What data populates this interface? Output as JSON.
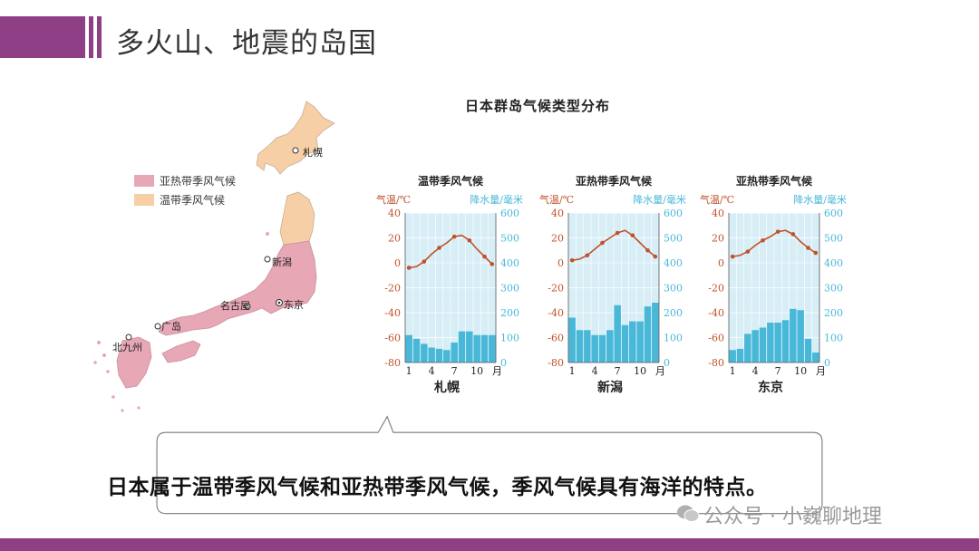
{
  "header": {
    "title": "多火山、地震的岛国"
  },
  "map": {
    "legend": [
      {
        "label": "亚热带季风气候",
        "color": "#e7a7b5"
      },
      {
        "label": "温带季风气候",
        "color": "#f6cfa6"
      }
    ],
    "cities": [
      "札幌",
      "新潟",
      "名古屋",
      "东京",
      "广岛",
      "北九州"
    ]
  },
  "distribution_title": "日本群岛气候类型分布",
  "colors": {
    "accent": "#8e3f86",
    "temp_line": "#c0512b",
    "precip_bar": "#49b8d8",
    "plot_bg": "#d8eef6"
  },
  "chart_data": [
    {
      "type": "bar",
      "title": "温带季风气候",
      "city": "札幌",
      "x_label": "月",
      "ylabel_left": "气温/℃",
      "ylabel_right": "降水量/毫米",
      "x": [
        1,
        2,
        3,
        4,
        5,
        6,
        7,
        8,
        9,
        10,
        11,
        12
      ],
      "x_ticks": [
        "1",
        "4",
        "7",
        "10"
      ],
      "temp_ylim": [
        -80,
        40
      ],
      "temp_ticks": [
        "40",
        "20",
        "0",
        "-20",
        "-40",
        "-60",
        "-80"
      ],
      "precip_ylim": [
        0,
        600
      ],
      "precip_ticks": [
        "600",
        "500",
        "400",
        "300",
        "200",
        "100",
        "0"
      ],
      "series": [
        {
          "name": "气温",
          "type": "line",
          "values": [
            -4,
            -3,
            1,
            7,
            12,
            16,
            21,
            22,
            18,
            11,
            5,
            -1
          ]
        },
        {
          "name": "降水量",
          "type": "bar",
          "values": [
            110,
            95,
            75,
            60,
            55,
            50,
            80,
            125,
            125,
            110,
            110,
            110
          ]
        }
      ]
    },
    {
      "type": "bar",
      "title": "亚热带季风气候",
      "city": "新潟",
      "x_label": "月",
      "ylabel_left": "气温/℃",
      "ylabel_right": "降水量/毫米",
      "x": [
        1,
        2,
        3,
        4,
        5,
        6,
        7,
        8,
        9,
        10,
        11,
        12
      ],
      "x_ticks": [
        "1",
        "4",
        "7",
        "10"
      ],
      "temp_ylim": [
        -80,
        40
      ],
      "temp_ticks": [
        "40",
        "20",
        "0",
        "-20",
        "-40",
        "-60",
        "-80"
      ],
      "precip_ylim": [
        0,
        600
      ],
      "precip_ticks": [
        "600",
        "500",
        "400",
        "300",
        "200",
        "100",
        "0"
      ],
      "series": [
        {
          "name": "气温",
          "type": "line",
          "values": [
            2,
            3,
            6,
            11,
            16,
            20,
            24,
            26,
            22,
            16,
            10,
            5
          ]
        },
        {
          "name": "降水量",
          "type": "bar",
          "values": [
            180,
            130,
            130,
            110,
            110,
            130,
            230,
            150,
            165,
            165,
            225,
            240
          ]
        }
      ]
    },
    {
      "type": "bar",
      "title": "亚热带季风气候",
      "city": "东京",
      "x_label": "月",
      "ylabel_left": "气温/℃",
      "ylabel_right": "降水量/毫米",
      "x": [
        1,
        2,
        3,
        4,
        5,
        6,
        7,
        8,
        9,
        10,
        11,
        12
      ],
      "x_ticks": [
        "1",
        "4",
        "7",
        "10"
      ],
      "temp_ylim": [
        -80,
        40
      ],
      "temp_ticks": [
        "40",
        "20",
        "0",
        "-20",
        "-40",
        "-60",
        "-80"
      ],
      "precip_ylim": [
        0,
        600
      ],
      "precip_ticks": [
        "600",
        "500",
        "400",
        "300",
        "200",
        "100",
        "0"
      ],
      "series": [
        {
          "name": "气温",
          "type": "line",
          "values": [
            5,
            6,
            9,
            14,
            18,
            21,
            25,
            26,
            23,
            17,
            12,
            8
          ]
        },
        {
          "name": "降水量",
          "type": "bar",
          "values": [
            50,
            55,
            115,
            130,
            140,
            160,
            160,
            170,
            215,
            210,
            95,
            40
          ]
        }
      ]
    }
  ],
  "callout": {
    "text": "日本属于温带季风气候和亚热带季风气候，季风气候具有海洋的特点。"
  },
  "watermark": {
    "text": "公众号 · 小巍聊地理"
  }
}
